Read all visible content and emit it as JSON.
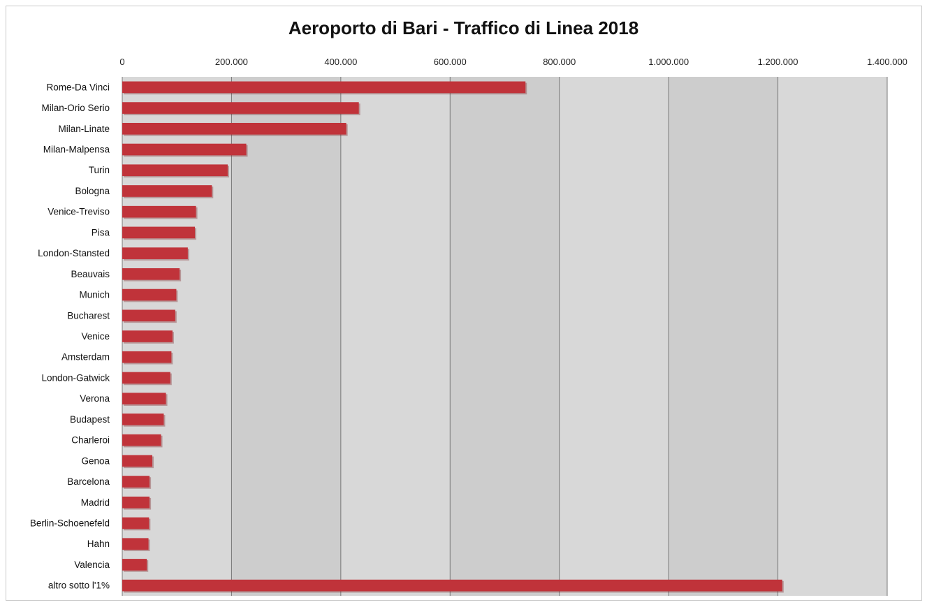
{
  "chart_data": {
    "type": "bar",
    "orientation": "horizontal",
    "title": "Aeroporto di Bari - Traffico di Linea 2018",
    "xlabel": "",
    "ylabel": "",
    "xlim": [
      0,
      1400000
    ],
    "ticks": [
      0,
      200000,
      400000,
      600000,
      800000,
      1000000,
      1200000,
      1400000
    ],
    "tick_labels": [
      "0",
      "200.000",
      "400.000",
      "600.000",
      "800.000",
      "1.000.000",
      "1.200.000",
      "1.400.000"
    ],
    "tick_position": "top",
    "grid": true,
    "legend": "none",
    "categories": [
      "Rome-Da Vinci",
      "Milan-Orio Serio",
      "Milan-Linate",
      "Milan-Malpensa",
      "Turin",
      "Bologna",
      "Venice-Treviso",
      "Pisa",
      "London-Stansted",
      "Beauvais",
      "Munich",
      "Bucharest",
      "Venice",
      "Amsterdam",
      "London-Gatwick",
      "Verona",
      "Budapest",
      "Charleroi",
      "Genoa",
      "Barcelona",
      "Madrid",
      "Berlin-Schoenefeld",
      "Hahn",
      "Valencia",
      "altro sotto l'1%"
    ],
    "values": [
      738000,
      433000,
      410000,
      227000,
      193000,
      164000,
      135000,
      133000,
      120000,
      105000,
      99000,
      97000,
      92000,
      90000,
      88000,
      80000,
      76000,
      71000,
      55000,
      50000,
      50000,
      49000,
      48000,
      45000,
      1208000
    ],
    "colors": {
      "bar": "#c0333a",
      "bar_shadow": "#7a1f22",
      "plot_bg_even": "#d8d8d8",
      "plot_bg_odd": "#cdcdcd",
      "grid": "#777777"
    }
  }
}
